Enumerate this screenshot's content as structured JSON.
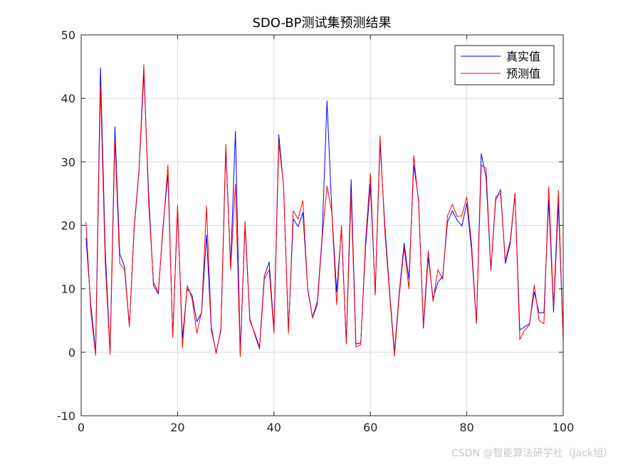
{
  "chart_data": {
    "type": "line",
    "title": "SDO-BP测试集预测结果",
    "xlabel": "",
    "ylabel": "",
    "xlim": [
      0,
      100
    ],
    "ylim": [
      -10,
      50
    ],
    "xticks": [
      0,
      20,
      40,
      60,
      80,
      100
    ],
    "yticks": [
      -10,
      0,
      10,
      20,
      30,
      40,
      50
    ],
    "grid": true,
    "legend": "top-right",
    "x": [
      1,
      2,
      3,
      4,
      5,
      6,
      7,
      8,
      9,
      10,
      11,
      12,
      13,
      14,
      15,
      16,
      17,
      18,
      19,
      20,
      21,
      22,
      23,
      24,
      25,
      26,
      27,
      28,
      29,
      30,
      31,
      32,
      33,
      34,
      35,
      36,
      37,
      38,
      39,
      40,
      41,
      42,
      43,
      44,
      45,
      46,
      47,
      48,
      49,
      50,
      51,
      52,
      53,
      54,
      55,
      56,
      57,
      58,
      59,
      60,
      61,
      62,
      63,
      64,
      65,
      66,
      67,
      68,
      69,
      70,
      71,
      72,
      73,
      74,
      75,
      76,
      77,
      78,
      79,
      80,
      81,
      82,
      83,
      84,
      85,
      86,
      87,
      88,
      89,
      90,
      91,
      92,
      93,
      94,
      95,
      96,
      97,
      98,
      99,
      100
    ],
    "series": [
      {
        "name": "真实值",
        "color": "#0000ff",
        "values": [
          18,
          7.5,
          0,
          44.8,
          16,
          0,
          35.5,
          15.5,
          13.5,
          4.2,
          19.5,
          28.5,
          44,
          25,
          10.5,
          9.2,
          20,
          28,
          2.5,
          22.5,
          2.2,
          10,
          9,
          4.8,
          6.3,
          18.5,
          3.5,
          0,
          3.5,
          32,
          13.5,
          34.8,
          0,
          20,
          5,
          3,
          0.8,
          12,
          14.2,
          3.5,
          34.3,
          26,
          3.5,
          21,
          19.8,
          22,
          10,
          5.5,
          8,
          18.5,
          39.6,
          22.3,
          9.5,
          19.5,
          1.5,
          27.2,
          1.3,
          1.5,
          16.5,
          26.5,
          9.2,
          33,
          20,
          9.5,
          0,
          9.5,
          17.2,
          11.5,
          29.5,
          24,
          3.8,
          15,
          8.5,
          11,
          12,
          20.5,
          22.3,
          20.8,
          19.9,
          23.5,
          16,
          4.5,
          31.3,
          27.5,
          12.9,
          24,
          25.6,
          14,
          17,
          25,
          3.5,
          4,
          4.5,
          9.5,
          6.2,
          6.2,
          24,
          6.3,
          23.5,
          2
        ]
      },
      {
        "name": "预测值",
        "color": "#ff0000",
        "values": [
          20.5,
          6.5,
          -0.5,
          42,
          14,
          -0.3,
          33.5,
          14,
          13,
          4,
          19.8,
          28.8,
          45.3,
          23.5,
          11,
          9.5,
          19.5,
          29.5,
          2.3,
          23.2,
          0.7,
          10.5,
          8.5,
          3,
          6.5,
          23,
          4,
          -0.2,
          3.8,
          32.8,
          13,
          26.5,
          -0.7,
          20.6,
          5.3,
          2.8,
          0.5,
          11.5,
          13,
          3,
          33,
          26.2,
          3,
          22.3,
          21,
          23.9,
          9.8,
          5.4,
          7.5,
          18,
          26.2,
          22,
          7.5,
          20,
          1.3,
          25,
          0.8,
          1.2,
          17.5,
          28.2,
          9,
          34.1,
          19,
          9,
          -0.6,
          9,
          16.5,
          10,
          31,
          23.5,
          4.3,
          16,
          8,
          13,
          11.5,
          21.5,
          23.3,
          21.4,
          21.5,
          24.5,
          17,
          4.6,
          29.5,
          29,
          13,
          24.5,
          25,
          14.5,
          17.5,
          25.1,
          2,
          3.5,
          4.3,
          10.6,
          5,
          4.5,
          26.1,
          7,
          25.5,
          1.8
        ]
      }
    ]
  },
  "watermark": "CSDN @智能算法研学社（Jack旭）"
}
